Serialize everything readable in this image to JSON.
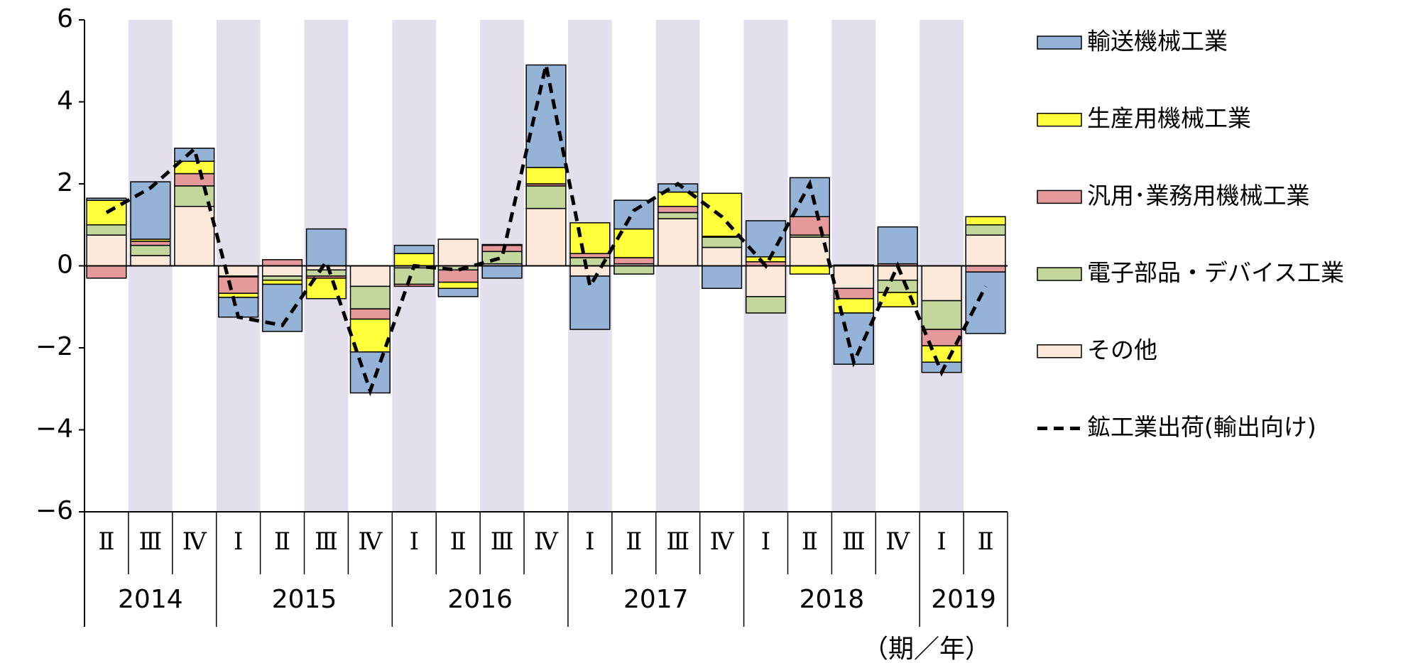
{
  "chart_data": {
    "type": "stacked-bar-line",
    "categories": [
      "Ⅱ",
      "Ⅲ",
      "Ⅳ",
      "Ⅰ",
      "Ⅱ",
      "Ⅲ",
      "Ⅳ",
      "Ⅰ",
      "Ⅱ",
      "Ⅲ",
      "Ⅳ",
      "Ⅰ",
      "Ⅱ",
      "Ⅲ",
      "Ⅳ",
      "Ⅰ",
      "Ⅱ",
      "Ⅲ",
      "Ⅳ",
      "Ⅰ",
      "Ⅱ"
    ],
    "years": [
      "2014",
      "2014",
      "2014",
      "2015",
      "2015",
      "2015",
      "2015",
      "2016",
      "2016",
      "2016",
      "2016",
      "2017",
      "2017",
      "2017",
      "2017",
      "2018",
      "2018",
      "2018",
      "2018",
      "2019",
      "2019"
    ],
    "x_label": "（期／年）",
    "ylim": [
      -6,
      6
    ],
    "yticks": [
      {
        "value": -6,
        "label": "−6"
      },
      {
        "value": -4,
        "label": "−4"
      },
      {
        "value": -2,
        "label": "−2"
      },
      0,
      2,
      4,
      6
    ],
    "series": [
      {
        "name": "輸送機械工業",
        "color": "#95b3d7",
        "values": [
          0.05,
          1.4,
          0.32,
          -0.48,
          -1.15,
          0.9,
          -1.0,
          0.2,
          -0.2,
          -0.3,
          2.5,
          -1.3,
          0.7,
          0.2,
          -0.55,
          0.88,
          0.95,
          -1.25,
          0.9,
          -0.25,
          -1.5
        ]
      },
      {
        "name": "生産用機械工業",
        "color": "#ffff3c",
        "values": [
          0.6,
          0.05,
          0.3,
          -0.1,
          -0.1,
          -0.5,
          -0.8,
          0.3,
          -0.15,
          0.02,
          0.4,
          0.75,
          0.7,
          0.35,
          1.05,
          0.12,
          -0.2,
          -0.35,
          -0.35,
          -0.4,
          0.2
        ]
      },
      {
        "name": "汎用･業務用機械工業",
        "color": "#e6999a",
        "values": [
          -0.3,
          0.1,
          0.3,
          -0.4,
          0.15,
          -0.05,
          -0.25,
          -0.05,
          -0.3,
          0.15,
          0.05,
          0.1,
          0.15,
          0.15,
          0.02,
          0.1,
          0.45,
          -0.25,
          0.05,
          -0.4,
          -0.15
        ]
      },
      {
        "name": "電子部品・デバイス工業",
        "color": "#c3d69b",
        "values": [
          0.25,
          0.25,
          0.5,
          -0.02,
          -0.1,
          -0.15,
          -0.55,
          -0.4,
          -0.1,
          0.3,
          0.55,
          0.2,
          -0.2,
          0.15,
          0.25,
          -0.4,
          0.05,
          0.02,
          -0.3,
          -0.7,
          0.25
        ]
      },
      {
        "name": "その他",
        "color": "#fde9d9",
        "values": [
          0.75,
          0.25,
          1.45,
          -0.25,
          -0.25,
          -0.1,
          -0.5,
          -0.05,
          0.65,
          0.05,
          1.4,
          -0.25,
          0.05,
          1.15,
          0.45,
          -0.75,
          0.7,
          -0.55,
          -0.35,
          -0.85,
          0.75
        ]
      }
    ],
    "line": {
      "name": "鉱工業出荷(輸出向け)",
      "color": "#000000",
      "values": [
        1.3,
        1.9,
        2.85,
        -1.25,
        -1.45,
        0.1,
        -3.05,
        0.0,
        -0.1,
        0.2,
        4.9,
        -0.5,
        1.35,
        2.0,
        1.2,
        0.0,
        2.0,
        -2.35,
        0.0,
        -2.6,
        -0.5
      ]
    },
    "stack_order": [
      "その他",
      "電子部品・デバイス工業",
      "汎用･業務用機械工業",
      "生産用機械工業",
      "輸送機械工業"
    ]
  }
}
